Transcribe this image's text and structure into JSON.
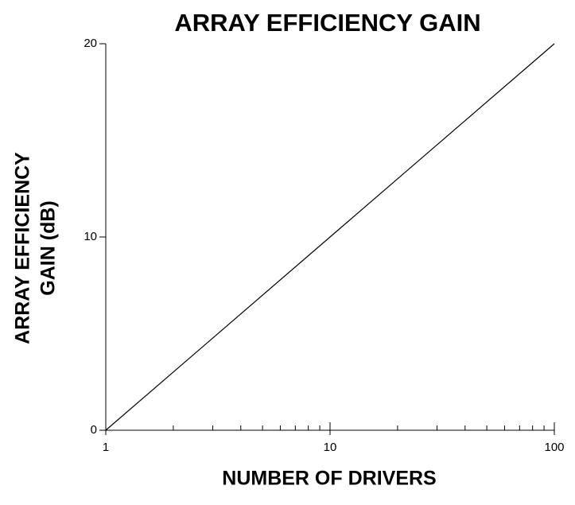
{
  "chart_data": {
    "type": "line",
    "title": "ARRAY EFFICIENCY GAIN",
    "xlabel": "NUMBER OF DRIVERS",
    "ylabel": [
      "ARRAY EFFICIENCY",
      "GAIN (dB)"
    ],
    "x": [
      1,
      10,
      100
    ],
    "values": [
      0,
      10,
      20
    ],
    "color": "#000000",
    "xscale": "log",
    "xlim": [
      1,
      100
    ],
    "xticks": [
      1,
      10,
      100
    ],
    "ylim": [
      0,
      20
    ],
    "yticks": [
      0,
      10,
      20
    ],
    "grid": false
  }
}
